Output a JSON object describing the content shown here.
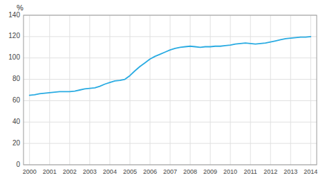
{
  "chart_data": {
    "type": "line",
    "ylabel": "%",
    "x": [
      2000.0,
      2000.25,
      2000.5,
      2000.75,
      2001.0,
      2001.25,
      2001.5,
      2001.75,
      2002.0,
      2002.25,
      2002.5,
      2002.75,
      2003.0,
      2003.25,
      2003.5,
      2003.75,
      2004.0,
      2004.25,
      2004.5,
      2004.75,
      2005.0,
      2005.25,
      2005.5,
      2005.75,
      2006.0,
      2006.25,
      2006.5,
      2006.75,
      2007.0,
      2007.25,
      2007.5,
      2007.75,
      2008.0,
      2008.25,
      2008.5,
      2008.75,
      2009.0,
      2009.25,
      2009.5,
      2009.75,
      2010.0,
      2010.25,
      2010.5,
      2010.75,
      2011.0,
      2011.25,
      2011.5,
      2011.75,
      2012.0,
      2012.25,
      2012.5,
      2012.75,
      2013.0,
      2013.25,
      2013.5,
      2013.75,
      2014.0
    ],
    "values": [
      65.0,
      65.5,
      66.5,
      67.0,
      67.5,
      68.0,
      68.5,
      68.5,
      68.5,
      69.0,
      70.0,
      71.0,
      71.5,
      72.0,
      73.5,
      75.5,
      77.0,
      78.5,
      79.0,
      80.0,
      83.5,
      88.0,
      92.0,
      95.5,
      99.0,
      101.5,
      103.5,
      105.5,
      107.5,
      109.0,
      110.0,
      110.5,
      111.0,
      110.5,
      110.0,
      110.5,
      110.5,
      111.0,
      111.0,
      111.5,
      112.0,
      113.0,
      113.5,
      114.0,
      113.5,
      113.0,
      113.5,
      114.0,
      115.0,
      116.0,
      117.0,
      118.0,
      118.5,
      119.0,
      119.5,
      119.5,
      120.0
    ],
    "color": "#29abe2",
    "xlim": [
      1999.7,
      2014.3
    ],
    "xticks": [
      2000,
      2001,
      2002,
      2003,
      2004,
      2005,
      2006,
      2007,
      2008,
      2009,
      2010,
      2011,
      2012,
      2013,
      2014
    ],
    "ylim": [
      0,
      140
    ],
    "yticks": [
      0,
      20,
      40,
      60,
      80,
      100,
      120,
      140
    ],
    "grid": true
  }
}
